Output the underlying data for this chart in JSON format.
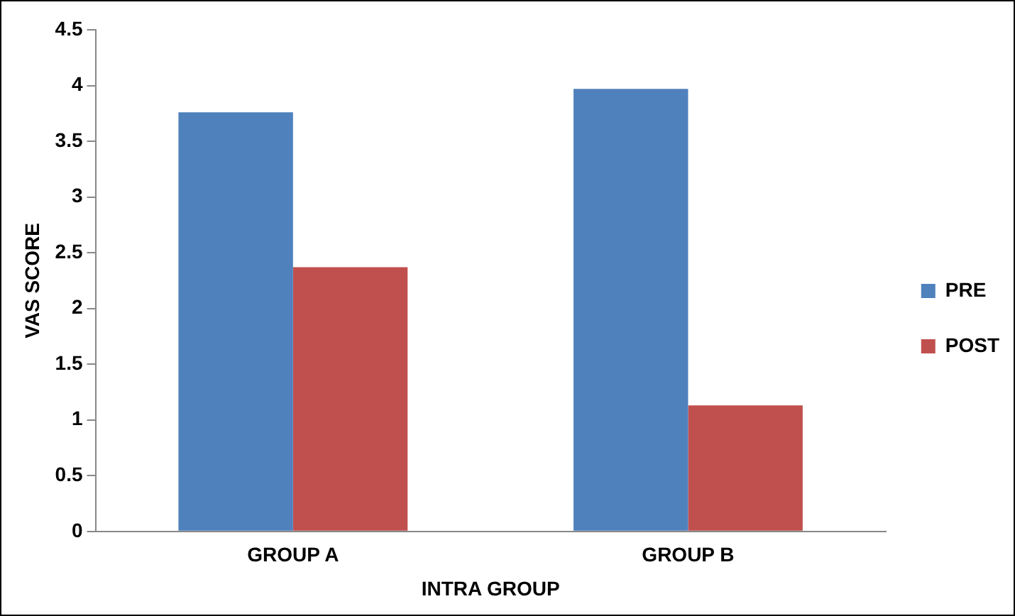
{
  "chart_data": {
    "type": "bar",
    "xlabel": "INTRA GROUP",
    "ylabel": "VAS SCORE",
    "categories": [
      "GROUP A",
      "GROUP B"
    ],
    "series": [
      {
        "name": "PRE",
        "color": "#4f81bd",
        "values": [
          3.76,
          3.97
        ]
      },
      {
        "name": "POST",
        "color": "#c0504d",
        "values": [
          2.37,
          1.13
        ]
      }
    ],
    "ylim": [
      0,
      4.5
    ],
    "yticks": [
      0,
      0.5,
      1,
      1.5,
      2,
      2.5,
      3,
      3.5,
      4,
      4.5
    ],
    "grid": false,
    "legend": "right"
  }
}
